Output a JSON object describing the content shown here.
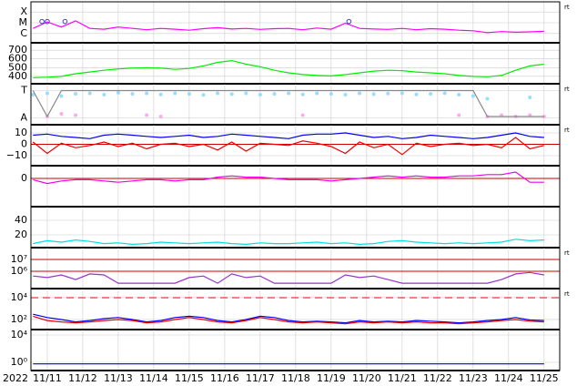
{
  "x_axis": {
    "x": [
      10.6,
      11.0,
      11.4,
      11.8,
      12.2,
      12.6,
      13.0,
      13.4,
      13.8,
      14.2,
      14.6,
      15.0,
      15.4,
      15.8,
      16.2,
      16.6,
      17.0,
      17.4,
      17.8,
      18.2,
      18.6,
      19.0,
      19.4,
      19.8,
      20.2,
      20.6,
      21.0,
      21.4,
      21.8,
      22.2,
      22.6,
      23.0,
      23.4,
      23.8,
      24.2,
      24.6,
      25.0
    ],
    "xlim": [
      10.54,
      25.44
    ],
    "xticks": [
      {
        "value": 11,
        "label": "11/11"
      },
      {
        "value": 12,
        "label": "11/12"
      },
      {
        "value": 13,
        "label": "11/13"
      },
      {
        "value": 14,
        "label": "11/14"
      },
      {
        "value": 15,
        "label": "11/15"
      },
      {
        "value": 16,
        "label": "11/16"
      },
      {
        "value": 17,
        "label": "11/17"
      },
      {
        "value": 18,
        "label": "11/18"
      },
      {
        "value": 19,
        "label": "11/19"
      },
      {
        "value": 20,
        "label": "11/20"
      },
      {
        "value": 21,
        "label": "11/21"
      },
      {
        "value": 22,
        "label": "11/22"
      },
      {
        "value": 23,
        "label": "11/23"
      },
      {
        "value": 24,
        "label": "11/24"
      },
      {
        "value": 25,
        "label": "11/25"
      }
    ],
    "year": "2022",
    "grid": true
  },
  "chart_data": [
    {
      "type": "line",
      "log": true,
      "ylim": [
        1.35e-07,
        0.0009
      ],
      "right_label": "rt",
      "yticks": [
        {
          "value": 1e-06,
          "label": "C"
        },
        {
          "value": 1e-05,
          "label": "M"
        },
        {
          "value": 0.0001,
          "label": "X"
        }
      ],
      "series": [
        {
          "color": "#ff00ff",
          "values": [
            3e-06,
            1.2e-05,
            4e-06,
            1.5e-05,
            3e-06,
            2.5e-06,
            4e-06,
            3e-06,
            2.2e-06,
            3e-06,
            2.5e-06,
            2e-06,
            2.8e-06,
            3.5e-06,
            2.6e-06,
            3e-06,
            2.4e-06,
            2.8e-06,
            3e-06,
            2.2e-06,
            3.2e-06,
            2.5e-06,
            9e-06,
            3e-06,
            2.6e-06,
            2.4e-06,
            3e-06,
            2.2e-06,
            2.8e-06,
            2.5e-06,
            2e-06,
            1.8e-06,
            1.2e-06,
            1.5e-06,
            1.3e-06,
            1.4e-06,
            1.6e-06
          ]
        }
      ],
      "events": {
        "color": "#4040e0",
        "x": [
          10.85,
          11.0,
          11.5,
          19.5
        ],
        "values": [
          1.3e-05,
          1.3e-05,
          1.3e-05,
          1.3e-05
        ]
      }
    },
    {
      "type": "line",
      "log": false,
      "ylim": [
        315,
        785
      ],
      "yticks": [
        400,
        500,
        600,
        700
      ],
      "series": [
        {
          "color": "#00ee00",
          "values": [
            385,
            390,
            400,
            430,
            450,
            470,
            485,
            495,
            500,
            495,
            480,
            490,
            520,
            560,
            580,
            540,
            510,
            470,
            440,
            420,
            410,
            405,
            420,
            440,
            460,
            470,
            465,
            450,
            440,
            430,
            410,
            400,
            395,
            410,
            470,
            520,
            540
          ]
        }
      ]
    },
    {
      "type": "line",
      "log": false,
      "ylim": [
        -0.25,
        1.25
      ],
      "right_label": "rt",
      "yticks": [
        {
          "value": 0,
          "label": "A"
        },
        {
          "value": 1,
          "label": "T"
        }
      ],
      "series": [
        {
          "color": "#99ddff",
          "style": "dots",
          "values": [
            0.85,
            0.9,
            0.8,
            0.88,
            0.9,
            0.85,
            0.92,
            0.88,
            0.9,
            0.86,
            0.9,
            0.88,
            0.84,
            0.9,
            0.87,
            0.9,
            0.85,
            0.88,
            0.9,
            0.86,
            0.9,
            0.88,
            0.85,
            0.9,
            0.87,
            0.89,
            0.9,
            0.86,
            0.88,
            0.9,
            0.85,
            0.8,
            0.7,
            null,
            null,
            0.75,
            null
          ]
        },
        {
          "color": "#ffaaee",
          "style": "dots",
          "values": [
            null,
            0.05,
            0.15,
            0.1,
            null,
            null,
            null,
            null,
            0.1,
            0.05,
            null,
            null,
            null,
            null,
            null,
            null,
            null,
            null,
            null,
            0.1,
            null,
            null,
            null,
            null,
            null,
            null,
            null,
            null,
            null,
            null,
            0.1,
            null,
            0.05,
            0.1,
            0.05,
            0.1,
            0.05
          ]
        },
        {
          "color": "#888888",
          "values": [
            1,
            0.05,
            1,
            1,
            1,
            1,
            1,
            1,
            1,
            1,
            1,
            1,
            1,
            1,
            1,
            1,
            1,
            1,
            1,
            1,
            1,
            1,
            1,
            1,
            1,
            1,
            1,
            1,
            1,
            1,
            1,
            1,
            0.05,
            0.05,
            0.05,
            0.05,
            0.05
          ]
        }
      ]
    },
    {
      "type": "line",
      "log": false,
      "ylim": [
        -18.8,
        17.2
      ],
      "right_label": "rt",
      "yticks": [
        {
          "value": -10,
          "label": "−10"
        },
        0,
        10
      ],
      "ref_lines": [
        {
          "value": 0,
          "color": "#cc0000"
        }
      ],
      "series": [
        {
          "color": "#0000ee",
          "values": [
            8,
            9,
            7,
            6,
            5,
            8,
            9,
            8,
            7,
            6,
            7,
            8,
            6,
            7,
            9,
            8,
            7,
            6,
            5,
            8,
            9,
            9,
            10,
            8,
            6,
            7,
            5,
            6,
            8,
            7,
            6,
            5,
            6,
            8,
            10,
            7,
            6
          ]
        },
        {
          "color": "#ee0000",
          "values": [
            2,
            -8,
            1,
            -3,
            -1,
            2,
            -2,
            1,
            -4,
            0,
            1,
            -2,
            0,
            -5,
            2,
            -6,
            1,
            0,
            -1,
            3,
            1,
            -2,
            -8,
            2,
            -3,
            0,
            -9,
            1,
            -2,
            0,
            1,
            -1,
            0,
            -3,
            6,
            -4,
            -1
          ]
        }
      ]
    },
    {
      "type": "line",
      "log": false,
      "ylim": [
        -22.1,
        10
      ],
      "yticks": [
        0
      ],
      "ref_lines": [
        {
          "value": 0,
          "color": "#cc0000"
        }
      ],
      "series": [
        {
          "color": "#ee00ee",
          "values": [
            -1,
            -4,
            -2,
            -1,
            -1,
            -2,
            -3,
            -2,
            -1,
            -1,
            -2,
            -1,
            -1,
            1,
            2,
            1,
            1,
            0,
            -1,
            -1,
            -1,
            -2,
            -1,
            0,
            1,
            2,
            1,
            2,
            1,
            1,
            2,
            2,
            3,
            3,
            5,
            -3,
            -3
          ]
        }
      ]
    },
    {
      "type": "line",
      "log": false,
      "ylim": [
        2.5,
        58.75
      ],
      "yticks": [
        20,
        40
      ],
      "series": [
        {
          "color": "#00e0e0",
          "values": [
            8,
            12,
            10,
            13,
            11,
            8,
            9,
            7,
            8,
            10,
            9,
            8,
            9,
            10,
            8,
            7,
            9,
            8,
            8,
            9,
            10,
            8,
            9,
            7,
            8,
            11,
            12,
            10,
            9,
            8,
            9,
            8,
            9,
            10,
            14,
            12,
            13
          ]
        }
      ]
    },
    {
      "type": "line",
      "log": true,
      "ylim": [
        35000.0,
        100000000.0
      ],
      "right_label": "rt",
      "yticks": [
        {
          "value": 1000000.0,
          "label": "10⁶"
        },
        {
          "value": 10000000.0,
          "label": "10⁷"
        }
      ],
      "ref_lines": [
        {
          "value": 1000000.0,
          "color": "#cc0000"
        },
        {
          "value": 10000000.0,
          "color": "#cc0000"
        }
      ],
      "series": [
        {
          "color": "#9933cc",
          "values": [
            400000.0,
            300000.0,
            500000.0,
            200000.0,
            600000.0,
            500000.0,
            100000.0,
            100000.0,
            100000.0,
            100000.0,
            100000.0,
            300000.0,
            400000.0,
            100000.0,
            600000.0,
            300000.0,
            400000.0,
            100000.0,
            100000.0,
            100000.0,
            100000.0,
            100000.0,
            500000.0,
            300000.0,
            400000.0,
            200000.0,
            100000.0,
            100000.0,
            100000.0,
            100000.0,
            100000.0,
            100000.0,
            100000.0,
            200000.0,
            600000.0,
            800000.0,
            500000.0
          ]
        }
      ]
    },
    {
      "type": "line",
      "log": true,
      "ylim": [
        12,
        68000.0
      ],
      "right_label": "rt",
      "yticks": [
        {
          "value": 100,
          "label": "10²"
        },
        {
          "value": 10000.0,
          "label": "10⁴"
        }
      ],
      "ref_lines": [
        {
          "value": 10000.0,
          "color": "#ee0000",
          "dashed": true
        }
      ],
      "series": [
        {
          "color": "#0000ee",
          "values": [
            300,
            150,
            100,
            60,
            80,
            120,
            150,
            100,
            60,
            80,
            150,
            200,
            150,
            80,
            60,
            100,
            200,
            150,
            80,
            60,
            70,
            60,
            50,
            80,
            60,
            70,
            60,
            80,
            70,
            60,
            50,
            60,
            80,
            100,
            150,
            90,
            80
          ]
        },
        {
          "color": "#ee0000",
          "values": [
            200,
            80,
            60,
            50,
            60,
            80,
            100,
            80,
            50,
            60,
            100,
            150,
            100,
            60,
            50,
            80,
            150,
            100,
            60,
            50,
            60,
            50,
            40,
            60,
            50,
            60,
            50,
            60,
            50,
            50,
            40,
            50,
            60,
            80,
            100,
            70,
            60
          ]
        }
      ]
    },
    {
      "type": "line",
      "log": true,
      "ylim": [
        0.063,
        63000.0
      ],
      "yticks": [
        {
          "value": 1,
          "label": "10⁰"
        },
        {
          "value": 10000.0,
          "label": "10⁴"
        }
      ],
      "series": [
        {
          "color": "#0000ee",
          "values": [
            0.6,
            0.6,
            0.6,
            0.6,
            0.6,
            0.6,
            0.6,
            0.6,
            0.6,
            0.6,
            0.6,
            0.6,
            0.6,
            0.6,
            0.6,
            0.6,
            0.6,
            0.6,
            0.6,
            0.6,
            0.6,
            0.6,
            0.6,
            0.6,
            0.6,
            0.6,
            0.6,
            0.6,
            0.6,
            0.6,
            0.6,
            0.6,
            0.6,
            0.6,
            0.6,
            0.6,
            0.6
          ]
        }
      ]
    }
  ]
}
